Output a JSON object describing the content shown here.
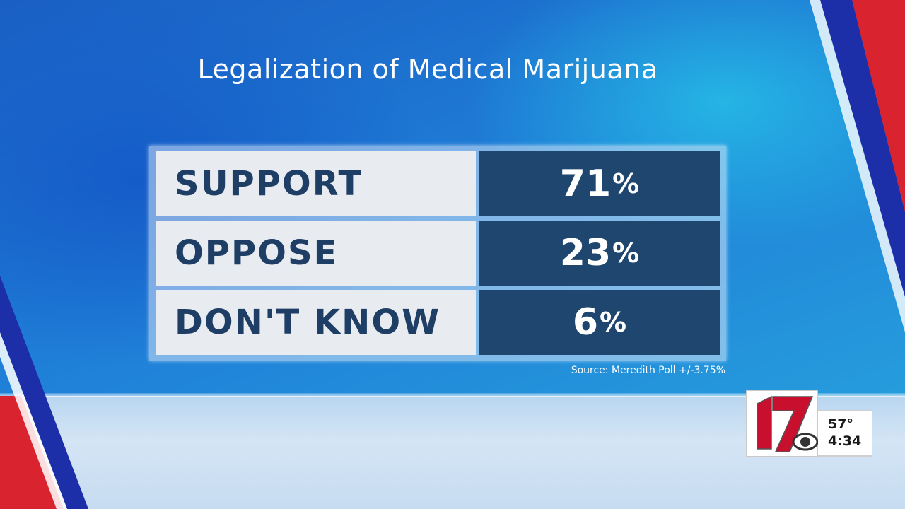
{
  "title": "Legalization of Medical Marijuana",
  "results": [
    {
      "label": "SUPPORT",
      "value": "71",
      "unit": "%"
    },
    {
      "label": "OPPOSE",
      "value": "23",
      "unit": "%"
    },
    {
      "label": "DON'T KNOW",
      "value": "6",
      "unit": "%"
    }
  ],
  "source": "Source: Meredith Poll +/-3.75%",
  "station": {
    "channel": "17",
    "network_icon": "cbs-eye-icon",
    "temperature": "57°",
    "time": "4:34"
  },
  "colors": {
    "label_bg": "#e8ecf1",
    "label_text": "#1e3e66",
    "value_bg": "#1e466e",
    "accent_red": "#d9232e",
    "accent_blue": "#1c2fa8"
  }
}
